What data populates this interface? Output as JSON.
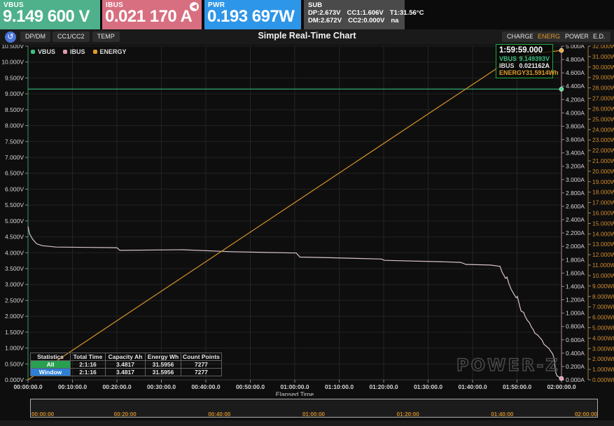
{
  "meters": {
    "vbus": {
      "label": "VBUS",
      "value": "9.149 600 V",
      "color": "#4fb08c"
    },
    "ibus": {
      "label": "IBUS",
      "value": "0.021 170 A",
      "color": "#d76f80",
      "direction_icon": "current-direction-left"
    },
    "pwr": {
      "label": "PWR",
      "value": "0.193 697W",
      "color": "#2e96e8"
    },
    "sub": {
      "label": "SUB",
      "color": "#4a4a4a",
      "dp": "DP:2.673V",
      "cc1": "CC1:1.606V",
      "t1": "T1:31.56°C",
      "dm": "DM:2.672V",
      "cc2": "CC2:0.000V",
      "na": "na"
    }
  },
  "toolbar": {
    "title": "Simple Real-Time Chart",
    "app_icon": "↺",
    "left_tabs": [
      "DP/DM",
      "CC1/CC2",
      "TEMP"
    ],
    "right_tabs": [
      {
        "label": "CHARGE",
        "active": false
      },
      {
        "label": "ENERGY",
        "active": true
      },
      {
        "label": "POWER",
        "active": false
      },
      {
        "label": "E.D.",
        "active": false
      }
    ]
  },
  "chart_data": {
    "type": "line",
    "title": "Simple Real-Time Chart",
    "xlabel": "Elapsed Time",
    "x_tick_labels": [
      "00:00:00.0",
      "00:10:00.0",
      "00:20:00.0",
      "00:30:00.0",
      "00:40:00.0",
      "00:50:00.0",
      "01:00:00.0",
      "01:10:00.0",
      "01:20:00.0",
      "01:30:00.0",
      "01:40:00.0",
      "01:50:00.0",
      "02:00:00.0"
    ],
    "x_range_seconds": [
      0,
      7200
    ],
    "grid": true,
    "legend": [
      {
        "name": "VBUS",
        "color": "#3fbf83"
      },
      {
        "name": "IBUS",
        "color": "#e09aa8"
      },
      {
        "name": "ENERGY",
        "color": "#e09a2a"
      }
    ],
    "axes": {
      "volts": {
        "unit": "V",
        "min": 0,
        "max": 10.5,
        "step": 0.5,
        "decimals": 3,
        "axis_color": "#2f9e68",
        "label_color": "#d6d6d6",
        "side": "left"
      },
      "amps": {
        "unit": "A",
        "min": 0,
        "max": 5,
        "step": 0.2,
        "decimals": 3,
        "axis_color": "#b98f97",
        "label_color": "#ded3d6",
        "side": "right-inner"
      },
      "wh": {
        "unit": "Wh",
        "min": 0,
        "max": 32,
        "step": 1,
        "decimals": 3,
        "axis_color": "#b07b24",
        "label_color": "#d08c2d",
        "side": "right-outer"
      }
    },
    "series": [
      {
        "name": "VBUS",
        "axis": "volts",
        "line_color": "#2fa870",
        "dot_color": "#52d494",
        "points": [
          [
            0,
            9.149
          ],
          [
            7199,
            9.149
          ]
        ]
      },
      {
        "name": "IBUS",
        "axis": "amps",
        "line_color": "#d9c3c9",
        "dot_color": "#e89aae",
        "points": [
          [
            0,
            2.3
          ],
          [
            20,
            2.19
          ],
          [
            60,
            2.11
          ],
          [
            115,
            2.04
          ],
          [
            190,
            2.01
          ],
          [
            380,
            1.99
          ],
          [
            1200,
            1.98
          ],
          [
            1240,
            1.94
          ],
          [
            2080,
            1.95
          ],
          [
            2740,
            1.92
          ],
          [
            3620,
            1.9
          ],
          [
            3670,
            1.84
          ],
          [
            4060,
            1.83
          ],
          [
            4770,
            1.81
          ],
          [
            4810,
            1.79
          ],
          [
            5570,
            1.77
          ],
          [
            5840,
            1.76
          ],
          [
            5910,
            1.73
          ],
          [
            6240,
            1.72
          ],
          [
            6370,
            1.7
          ],
          [
            6400,
            1.61
          ],
          [
            6420,
            1.57
          ],
          [
            6445,
            1.52
          ],
          [
            6465,
            1.54
          ],
          [
            6490,
            1.44
          ],
          [
            6520,
            1.36
          ],
          [
            6560,
            1.28
          ],
          [
            6590,
            1.23
          ],
          [
            6605,
            1.25
          ],
          [
            6635,
            1.11
          ],
          [
            6655,
            1.03
          ],
          [
            6690,
            1.01
          ],
          [
            6710,
            0.95
          ],
          [
            6740,
            0.89
          ],
          [
            6765,
            0.86
          ],
          [
            6795,
            0.79
          ],
          [
            6820,
            0.75
          ],
          [
            6840,
            0.7
          ],
          [
            6880,
            0.67
          ],
          [
            6910,
            0.63
          ],
          [
            6935,
            0.6
          ],
          [
            6965,
            0.53
          ],
          [
            7000,
            0.5
          ],
          [
            7030,
            0.47
          ],
          [
            7060,
            0.42
          ],
          [
            7080,
            0.39
          ],
          [
            7095,
            0.34
          ],
          [
            7105,
            0.28
          ],
          [
            7115,
            0.17
          ],
          [
            7125,
            0.1
          ],
          [
            7140,
            0.06
          ],
          [
            7199,
            0.021
          ]
        ]
      },
      {
        "name": "ENERGY",
        "axis": "wh",
        "line_color": "#d6922a",
        "dot_color": "#e8a832",
        "points": [
          [
            0,
            0
          ],
          [
            1800,
            8.5
          ],
          [
            3600,
            17.0
          ],
          [
            5400,
            25.5
          ],
          [
            6370,
            30.07
          ],
          [
            6600,
            30.9
          ],
          [
            6900,
            31.35
          ],
          [
            7199,
            31.5914
          ]
        ]
      }
    ]
  },
  "tooltip": {
    "time": "1:59:59.000",
    "rows": [
      {
        "label": "VBUS",
        "value": "9.149393V",
        "label_color": "#3fbf83",
        "value_color": "#3fbf83"
      },
      {
        "label": "IBUS",
        "value": "0.021162A",
        "label_color": "#d8d8d8",
        "value_color": "#f0f0f0"
      },
      {
        "label": "ENERGY",
        "value": "31.5914Wh",
        "label_color": "#e09a2a",
        "value_color": "#e09a2a"
      }
    ]
  },
  "stats_table": {
    "headers": [
      "Statistics",
      "Total Time",
      "Capacity Ah",
      "Energy Wh",
      "Count Points"
    ],
    "rows": [
      {
        "name": "All",
        "name_bg": "#27a04f",
        "values": [
          "2:1:16",
          "3.4817",
          "31.5956",
          "7277"
        ]
      },
      {
        "name": "Window",
        "name_bg": "#2d7fd6",
        "values": [
          "2:1:16",
          "3.4817",
          "31.5956",
          "7277"
        ]
      }
    ]
  },
  "watermark": "POWER-Z",
  "timeline": {
    "labels": [
      "00:00:00",
      "00:20:00",
      "00:40:00",
      "01:00:00",
      "01:20:00",
      "01:40:00",
      "02:00:00"
    ]
  }
}
